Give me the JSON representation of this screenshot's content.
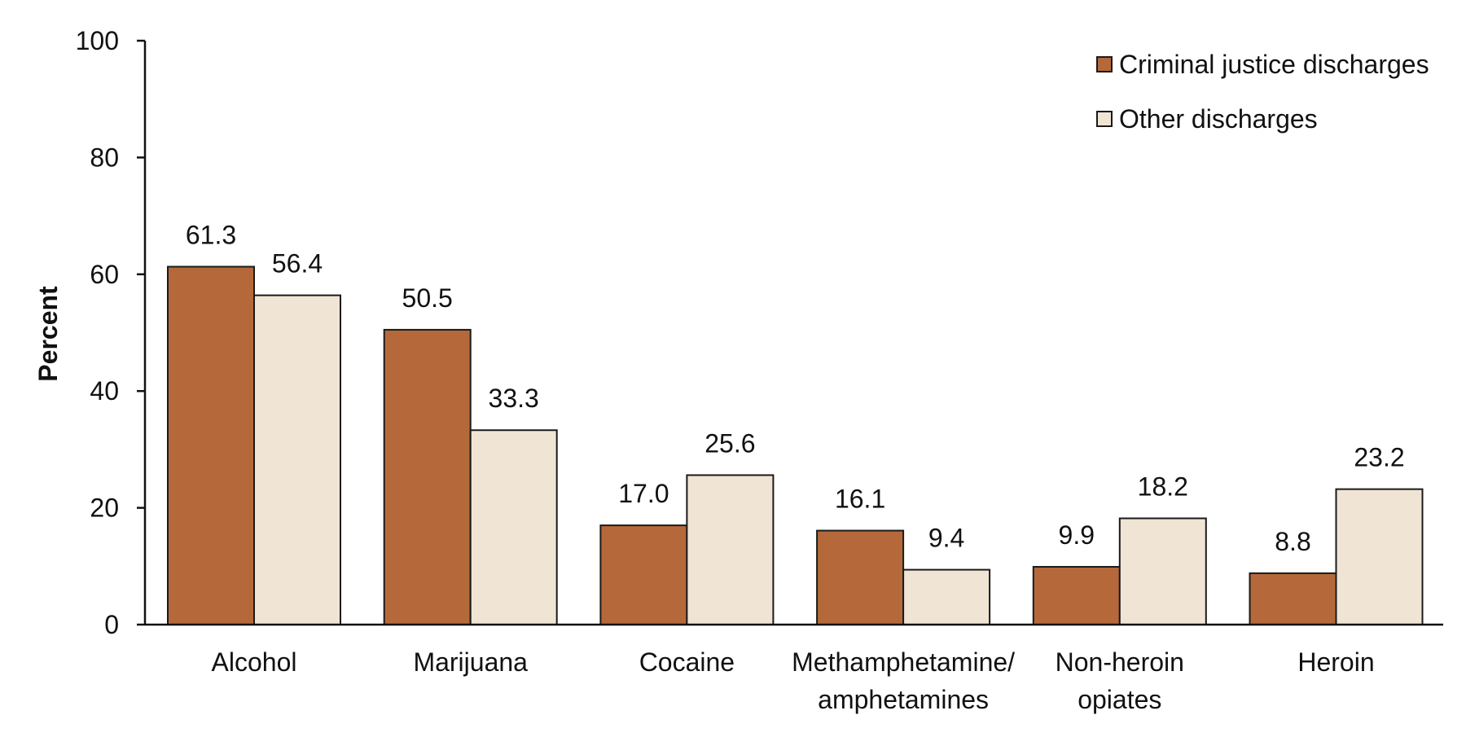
{
  "chart_data": {
    "type": "bar",
    "title": "",
    "xlabel": "",
    "ylabel": "Percent",
    "ylim": [
      0,
      100
    ],
    "yticks": [
      0,
      20,
      40,
      60,
      80,
      100
    ],
    "grid": false,
    "legend_position": "top-right",
    "categories": [
      [
        "Alcohol"
      ],
      [
        "Marijuana"
      ],
      [
        "Cocaine"
      ],
      [
        "Methamphetamine/",
        "amphetamines"
      ],
      [
        "Non-heroin",
        "opiates"
      ],
      [
        "Heroin"
      ]
    ],
    "series": [
      {
        "name": "Criminal justice discharges",
        "color": "#B5693A",
        "values": [
          61.3,
          50.5,
          17.0,
          16.1,
          9.9,
          8.8
        ],
        "labels": [
          "61.3",
          "50.5",
          "17.0",
          "16.1",
          "9.9",
          "8.8"
        ]
      },
      {
        "name": "Other discharges",
        "color": "#F0E5D5",
        "values": [
          56.4,
          33.3,
          25.6,
          9.4,
          18.2,
          23.2
        ],
        "labels": [
          "56.4",
          "33.3",
          "25.6",
          "9.4",
          "18.2",
          "23.2"
        ]
      }
    ]
  }
}
